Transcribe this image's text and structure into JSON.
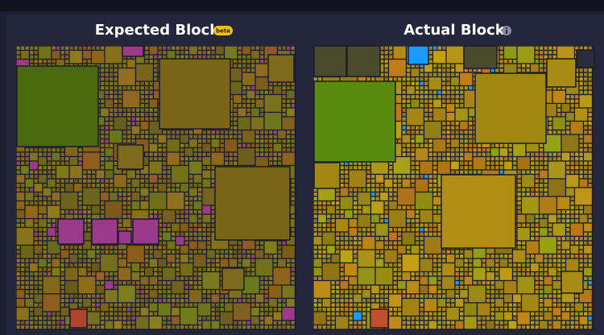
{
  "panels": [
    {
      "title": "Expected Block",
      "badge": "beta"
    },
    {
      "title": "Actual Block"
    }
  ]
}
